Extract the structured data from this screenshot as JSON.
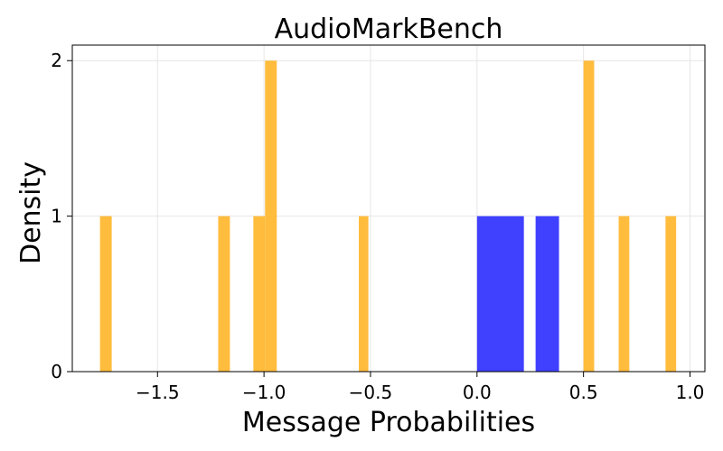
{
  "chart_data": {
    "type": "bar",
    "title": "AudioMarkBench",
    "xlabel": "Message Probabilities",
    "ylabel": "Density",
    "xlim": [
      -1.9,
      1.07
    ],
    "ylim": [
      0,
      2.1
    ],
    "grid": true,
    "xticks": [
      -1.5,
      -1.0,
      -0.5,
      0.0,
      0.5,
      1.0
    ],
    "xtick_labels": [
      "−1.5",
      "−1.0",
      "−0.5",
      "0.0",
      "0.5",
      "1.0"
    ],
    "yticks": [
      0,
      1,
      2
    ],
    "ytick_labels": [
      "0",
      "1",
      "2"
    ],
    "series": [
      {
        "color": "#ffb833",
        "bins": [
          {
            "x0": -1.77,
            "x1": -1.715,
            "value": 1
          },
          {
            "x0": -1.215,
            "x1": -1.16,
            "value": 1
          },
          {
            "x0": -1.05,
            "x1": -0.995,
            "value": 1
          },
          {
            "x0": -0.995,
            "x1": -0.94,
            "value": 2
          },
          {
            "x0": -0.555,
            "x1": -0.51,
            "value": 1
          },
          {
            "x0": 0.5,
            "x1": 0.55,
            "value": 2
          },
          {
            "x0": 0.665,
            "x1": 0.715,
            "value": 1
          },
          {
            "x0": 0.885,
            "x1": 0.935,
            "value": 1
          }
        ]
      },
      {
        "color": "#4040ff",
        "bins": [
          {
            "x0": 0.0,
            "x1": 0.22,
            "value": 1
          },
          {
            "x0": 0.275,
            "x1": 0.385,
            "value": 1
          }
        ]
      }
    ]
  }
}
